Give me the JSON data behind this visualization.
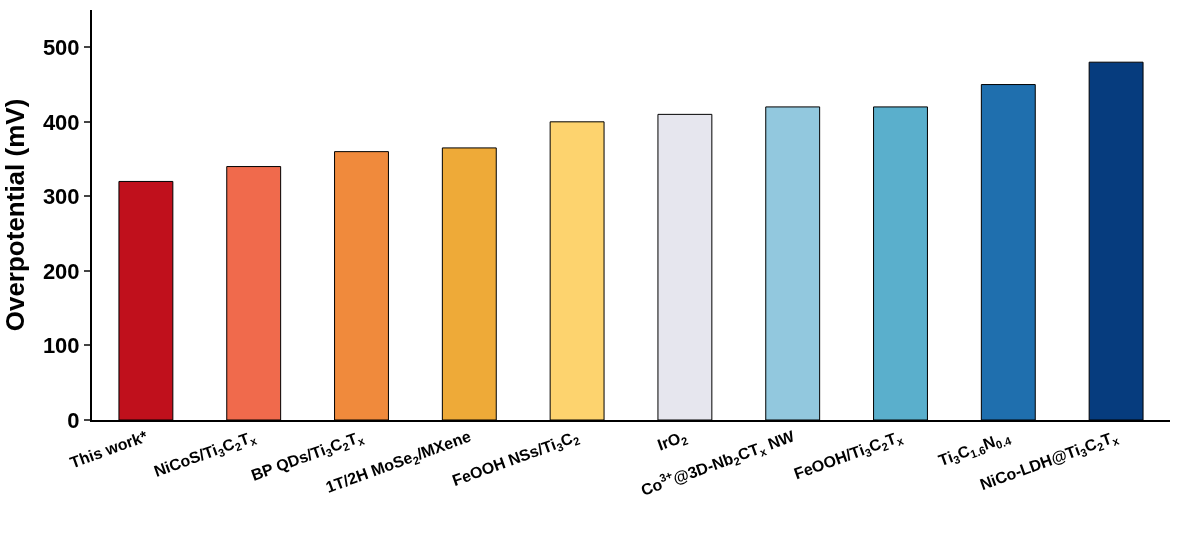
{
  "chart_data": {
    "type": "bar",
    "ylabel": "Overpotential (mV)",
    "categories": [
      "This work*",
      "NiCoS/Ti$_{3}$C$_{2}$T$_{x}$",
      "BP QDs/Ti$_{3}$C$_{2}$T$_{x}$",
      "1T/2H MoSe$_{2}$/MXene",
      "FeOOH NSs/Ti$_{3}$C$_{2}$",
      "IrO$_{2}$",
      "Co$^{3+}$@3D-Nb$_{2}$CT$_{x}$ NW",
      "FeOOH/Ti$_{3}$C$_{2}$T$_{x}$",
      "Ti$_{3}$C$_{1.6}$N$_{0.4}$",
      "NiCo-LDH@Ti$_{3}$C$_{2}$T$_{x}$"
    ],
    "values": [
      320,
      340,
      360,
      365,
      400,
      410,
      420,
      420,
      450,
      480
    ],
    "colors": [
      "#c0101c",
      "#f06a4c",
      "#f08a3c",
      "#eeaa38",
      "#fdd36e",
      "#e6e6ee",
      "#92c8de",
      "#5aafcc",
      "#1f6fae",
      "#063c7e"
    ],
    "ylim": [
      0,
      550
    ],
    "yticks": [
      0,
      100,
      200,
      300,
      400,
      500
    ]
  }
}
